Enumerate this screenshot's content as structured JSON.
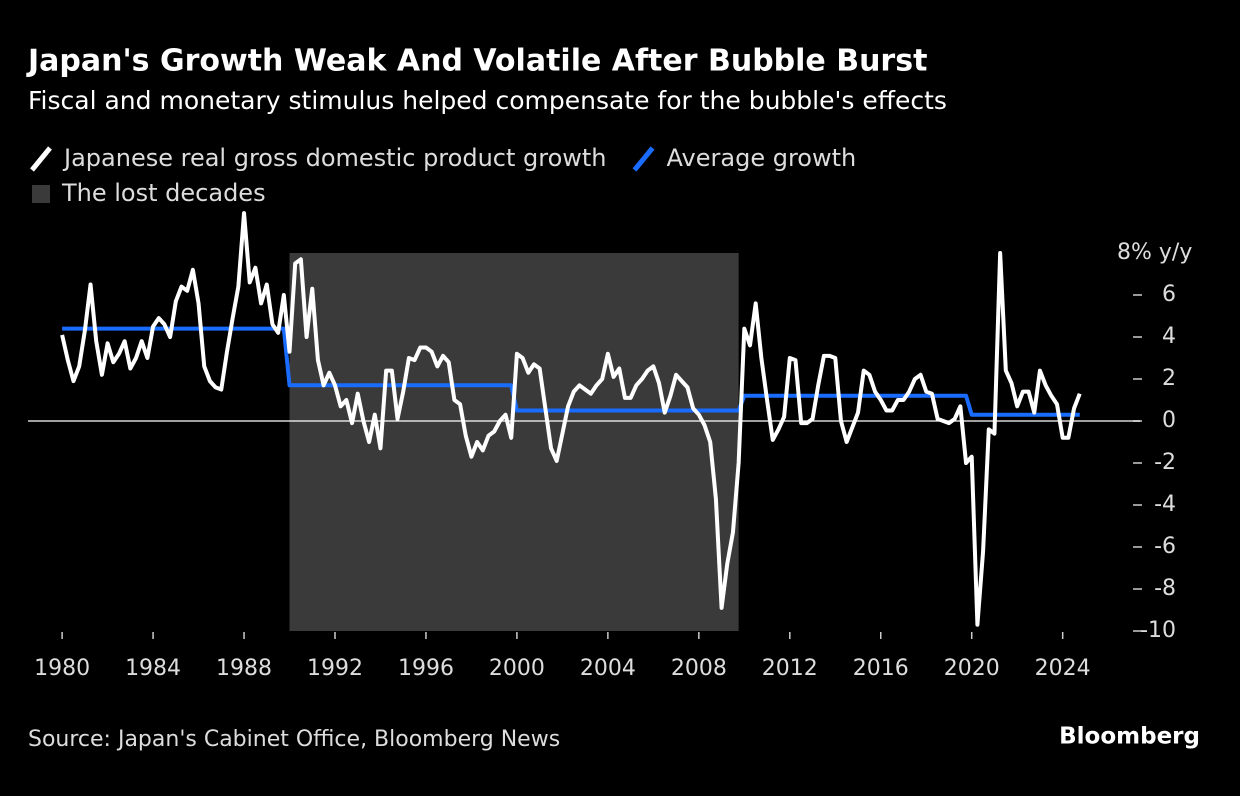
{
  "chart_data": {
    "type": "line",
    "title": "Japan's Growth Weak And Volatile After Bubble Burst",
    "subtitle": "Fiscal and monetary stimulus helped compensate for the bubble's effects",
    "source": "Source: Japan's Cabinet Office, Bloomberg News",
    "brand": "Bloomberg",
    "xlim": [
      1978.5,
      2027.4
    ],
    "xticks": [
      1980,
      1984,
      1988,
      1992,
      1996,
      2000,
      2004,
      2008,
      2012,
      2016,
      2020,
      2024
    ],
    "ylim": [
      -10,
      8
    ],
    "yticks": [
      {
        "value": 8,
        "label": "8% y/y"
      },
      6,
      4,
      2,
      0,
      -2,
      -4,
      -6,
      -8,
      -10
    ],
    "shade": {
      "name": "The lost decades",
      "color": "#3a3a3a",
      "x": [
        1990,
        2009.75
      ]
    },
    "series": [
      {
        "name": "Japanese real gross domestic product growth",
        "color": "#ffffff",
        "x": [
          1980,
          1980.25,
          1980.5,
          1980.75,
          1981,
          1981.25,
          1981.5,
          1981.75,
          1982,
          1982.25,
          1982.5,
          1982.75,
          1983,
          1983.25,
          1983.5,
          1983.75,
          1984,
          1984.25,
          1984.5,
          1984.75,
          1985,
          1985.25,
          1985.5,
          1985.75,
          1986,
          1986.25,
          1986.5,
          1986.75,
          1987,
          1987.25,
          1987.5,
          1987.75,
          1988,
          1988.25,
          1988.5,
          1988.75,
          1989,
          1989.25,
          1989.5,
          1989.75,
          1990,
          1990.25,
          1990.5,
          1990.75,
          1991,
          1991.25,
          1991.5,
          1991.75,
          1992,
          1992.25,
          1992.5,
          1992.75,
          1993,
          1993.25,
          1993.5,
          1993.75,
          1994,
          1994.25,
          1994.5,
          1994.75,
          1995,
          1995.25,
          1995.5,
          1995.75,
          1996,
          1996.25,
          1996.5,
          1996.75,
          1997,
          1997.25,
          1997.5,
          1997.75,
          1998,
          1998.25,
          1998.5,
          1998.75,
          1999,
          1999.25,
          1999.5,
          1999.75,
          2000,
          2000.25,
          2000.5,
          2000.75,
          2001,
          2001.25,
          2001.5,
          2001.75,
          2002,
          2002.25,
          2002.5,
          2002.75,
          2003,
          2003.25,
          2003.5,
          2003.75,
          2004,
          2004.25,
          2004.5,
          2004.75,
          2005,
          2005.25,
          2005.5,
          2005.75,
          2006,
          2006.25,
          2006.5,
          2006.75,
          2007,
          2007.25,
          2007.5,
          2007.75,
          2008,
          2008.25,
          2008.5,
          2008.75,
          2009,
          2009.25,
          2009.5,
          2009.75,
          2010,
          2010.25,
          2010.5,
          2010.75,
          2011,
          2011.25,
          2011.5,
          2011.75,
          2012,
          2012.25,
          2012.5,
          2012.75,
          2013,
          2013.25,
          2013.5,
          2013.75,
          2014,
          2014.25,
          2014.5,
          2014.75,
          2015,
          2015.25,
          2015.5,
          2015.75,
          2016,
          2016.25,
          2016.5,
          2016.75,
          2017,
          2017.25,
          2017.5,
          2017.75,
          2018,
          2018.25,
          2018.5,
          2018.75,
          2019,
          2019.25,
          2019.5,
          2019.75,
          2020,
          2020.25,
          2020.5,
          2020.75,
          2021,
          2021.25,
          2021.5,
          2021.75,
          2022,
          2022.25,
          2022.5,
          2022.75,
          2023,
          2023.25,
          2023.5,
          2023.75,
          2024,
          2024.25,
          2024.5,
          2024.75
        ],
        "values": [
          4.1,
          2.9,
          1.9,
          2.6,
          4.3,
          6.5,
          3.8,
          2.2,
          3.7,
          2.8,
          3.2,
          3.8,
          2.5,
          3.0,
          3.8,
          3.0,
          4.5,
          4.9,
          4.6,
          4.0,
          5.7,
          6.4,
          6.2,
          7.2,
          5.6,
          2.6,
          1.9,
          1.6,
          1.5,
          3.3,
          4.9,
          6.4,
          9.9,
          6.6,
          7.3,
          5.6,
          6.5,
          4.6,
          4.2,
          6.0,
          3.3,
          7.5,
          7.7,
          4.0,
          6.3,
          2.9,
          1.7,
          2.3,
          1.7,
          0.7,
          1.0,
          -0.1,
          1.3,
          0.0,
          -1.0,
          0.3,
          -1.3,
          2.4,
          2.4,
          0.1,
          1.4,
          3.0,
          2.9,
          3.5,
          3.5,
          3.3,
          2.6,
          3.1,
          2.8,
          1.0,
          0.8,
          -0.7,
          -1.7,
          -1.0,
          -1.4,
          -0.7,
          -0.5,
          0.0,
          0.3,
          -0.8,
          3.2,
          3.0,
          2.3,
          2.7,
          2.5,
          0.6,
          -1.3,
          -1.9,
          -0.6,
          0.7,
          1.4,
          1.7,
          1.5,
          1.3,
          1.7,
          2.0,
          3.2,
          2.1,
          2.5,
          1.1,
          1.1,
          1.7,
          2.0,
          2.4,
          2.6,
          1.8,
          0.4,
          1.2,
          2.2,
          1.9,
          1.6,
          0.6,
          0.3,
          -0.2,
          -1.0,
          -3.7,
          -8.9,
          -6.8,
          -5.3,
          -2.0,
          4.4,
          3.6,
          5.6,
          3.0,
          1.0,
          -0.9,
          -0.4,
          0.2,
          3.0,
          2.9,
          -0.1,
          -0.1,
          0.1,
          1.7,
          3.1,
          3.1,
          3.0,
          0.0,
          -1.0,
          -0.3,
          0.4,
          2.4,
          2.2,
          1.4,
          1.0,
          0.5,
          0.5,
          1.0,
          1.0,
          1.4,
          2.0,
          2.2,
          1.4,
          1.3,
          0.1,
          0.0,
          -0.1,
          0.1,
          0.7,
          -2.0,
          -1.7,
          -9.7,
          -6.2,
          -0.4,
          -0.6,
          8.0,
          2.4,
          1.8,
          0.7,
          1.4,
          1.4,
          0.4,
          2.4,
          1.7,
          1.2,
          0.8,
          -0.8,
          -0.8,
          0.6,
          1.3
        ]
      },
      {
        "name": "Average growth",
        "color": "#1a6cff",
        "x": [
          1980,
          1989.75,
          1990,
          1999.75,
          2000,
          2009.75,
          2010,
          2019.75,
          2020,
          2024.75
        ],
        "values": [
          4.4,
          4.4,
          1.7,
          1.7,
          0.5,
          0.5,
          1.2,
          1.2,
          0.3,
          0.3
        ]
      }
    ]
  }
}
